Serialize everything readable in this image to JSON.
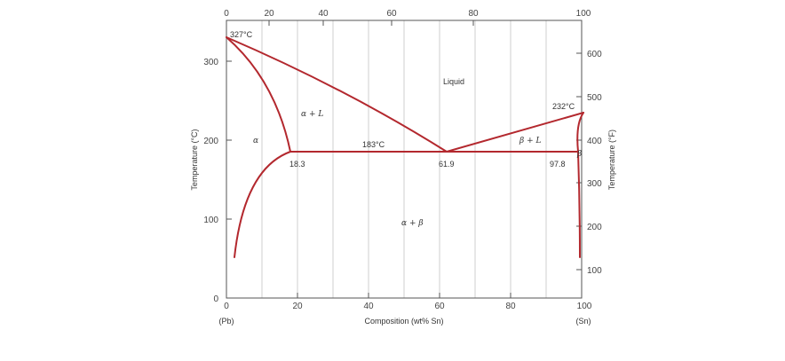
{
  "diagram": {
    "line_color": "#b3282e",
    "x_axis": {
      "title": "Composition (wt% Sn)",
      "range": [
        0,
        100
      ],
      "bottom_ticks": [
        "0",
        "20",
        "40",
        "60",
        "80",
        "100"
      ],
      "left_end_label": "(Pb)",
      "right_end_label": "(Sn)"
    },
    "x_top_axis": {
      "range": [
        0,
        100
      ],
      "ticks": [
        "0",
        "20",
        "40",
        "60",
        "80",
        "100"
      ]
    },
    "y_axis": {
      "title": "Temperature (°C)",
      "range": [
        0,
        330
      ],
      "ticks": [
        "0",
        "100",
        "200",
        "300"
      ]
    },
    "y_right_axis": {
      "title": "Temperature (°F)",
      "ticks": [
        "100",
        "200",
        "300",
        "400",
        "500",
        "600"
      ]
    },
    "annotations": {
      "pb_melt": "327°C",
      "sn_melt": "232°C",
      "eutectic_temp": "183°C",
      "alpha_limit": "18.3",
      "eutectic_comp": "61.9",
      "beta_limit": "97.8"
    },
    "regions": {
      "liquid": "Liquid",
      "alpha": "α",
      "alpha_liquid": "α + L",
      "beta_liquid": "β + L",
      "beta": "β",
      "alpha_beta": "α + β"
    }
  }
}
